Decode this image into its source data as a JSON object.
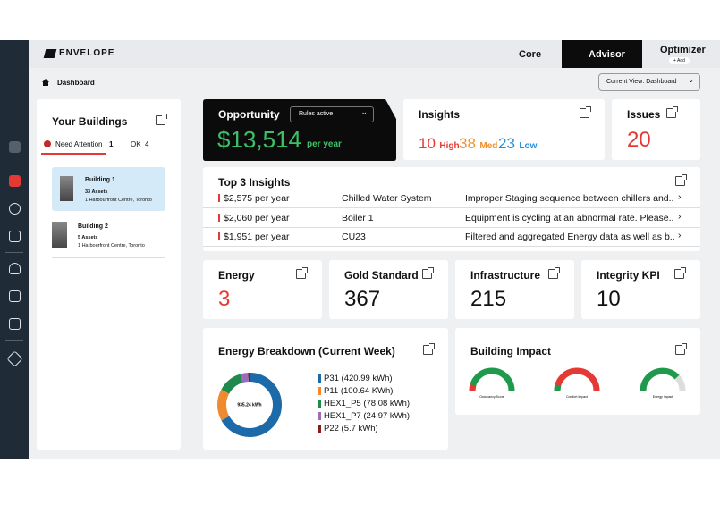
{
  "header": {
    "logo": "ENVELOPE",
    "tabs": [
      "Core",
      "Advisor",
      "Optimizer"
    ],
    "add": "+ Add"
  },
  "breadcrumb": "Dashboard",
  "current_view": "Current View: Dashboard",
  "buildings": {
    "title": "Your Buildings",
    "tabs": [
      {
        "label": "Need Attention",
        "count": 1
      },
      {
        "label": "OK",
        "count": 4
      }
    ],
    "items": [
      {
        "name": "Building 1",
        "assets": "33 Assets",
        "address": "1 Harbourfront Centre, Toronto"
      },
      {
        "name": "Building 2",
        "assets": "5 Assets",
        "address": "1 Harbourfront Centre, Toronto"
      }
    ]
  },
  "opportunity": {
    "title": "Opportunity",
    "filter": "Rules active",
    "amount": "$13,514",
    "unit": "per year"
  },
  "insights": {
    "title": "Insights",
    "counts": [
      {
        "value": 10,
        "label": "High"
      },
      {
        "value": 38,
        "label": "Med"
      },
      {
        "value": 23,
        "label": "Low"
      }
    ]
  },
  "issues": {
    "title": "Issues",
    "value": 20
  },
  "top_insights": {
    "title": "Top 3 Insights",
    "rows": [
      [
        "$2,575 per year",
        "Chilled Water System",
        "Improper Staging sequence between chillers and.."
      ],
      [
        "$2,060 per year",
        "Boiler 1",
        "Equipment is cycling at an abnormal rate. Please.."
      ],
      [
        "$1,951 per year",
        "CU23",
        "Filtered and aggregated Energy data as well as b.."
      ]
    ]
  },
  "kpis": [
    {
      "title": "Energy",
      "value": 3
    },
    {
      "title": "Gold Standard",
      "value": 367
    },
    {
      "title": "Infrastructure",
      "value": 215
    },
    {
      "title": "Integrity KPI",
      "value": 10
    }
  ],
  "energy_breakdown": {
    "title": "Energy Breakdown (Current Week)",
    "total": "935.24 kWh",
    "items": [
      {
        "label": "P31 (420.99 kWh)",
        "value": 420.99,
        "color": "#1c6aa8"
      },
      {
        "label": "P11 (100.64 KWh)",
        "value": 100.64,
        "color": "#f08a30"
      },
      {
        "label": "HEX1_P5 (78.08 kWh)",
        "value": 78.08,
        "color": "#1f8a4c"
      },
      {
        "label": "HEX1_P7 (24.97 kWh)",
        "value": 24.97,
        "color": "#9b6bc0"
      },
      {
        "label": "P22 (5.7 kWh)",
        "value": 5.7,
        "color": "#8b1a1a"
      }
    ]
  },
  "building_impact": {
    "title": "Building Impact",
    "gauges": [
      "Occupancy Score",
      "Comfort Impact",
      "Energy Impact"
    ]
  }
}
